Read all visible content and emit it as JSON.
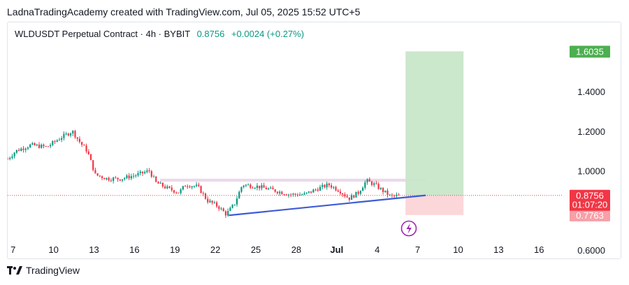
{
  "header": {
    "credit": "LadnaTradingAcademy created with TradingView.com, Jul 05, 2025 15:52 UTC+5"
  },
  "legend": {
    "symbol": "WLDUSDT Perpetual Contract · 4h · BYBIT",
    "price": "0.8756",
    "change": "+0.0024 (+0.27%)"
  },
  "footer": {
    "brand": "TradingView",
    "logo_icon": "tradingview-logo-icon"
  },
  "colors": {
    "up": "#089981",
    "down": "#f23645",
    "trendline": "#3d5bd6",
    "target_zone": "#c8e6c9",
    "stop_zone": "#fcd5d8",
    "resistance_zone": "#e8d5e8",
    "target_label": "#4caf50",
    "price_label": "#f23645"
  },
  "chart_data": {
    "type": "candlestick",
    "y_axis": {
      "min": 0.55,
      "max": 1.75,
      "ticks": [
        "1.4000",
        "1.2000",
        "1.0000",
        "0.6000"
      ]
    },
    "x_axis": {
      "range_days": [
        6.6,
        47.8
      ],
      "ticks": [
        {
          "label": "7",
          "day": 7
        },
        {
          "label": "10",
          "day": 10
        },
        {
          "label": "13",
          "day": 13
        },
        {
          "label": "16",
          "day": 16
        },
        {
          "label": "19",
          "day": 19
        },
        {
          "label": "22",
          "day": 22
        },
        {
          "label": "25",
          "day": 25
        },
        {
          "label": "28",
          "day": 28
        },
        {
          "label": "Jul",
          "day": 31,
          "bold": true
        },
        {
          "label": "4",
          "day": 34
        },
        {
          "label": "7",
          "day": 37
        },
        {
          "label": "10",
          "day": 40
        },
        {
          "label": "13",
          "day": 43
        },
        {
          "label": "16",
          "day": 46
        }
      ]
    },
    "price_path": [
      [
        6.6,
        1.06
      ],
      [
        7.2,
        1.1
      ],
      [
        8.3,
        1.13
      ],
      [
        9.5,
        1.12
      ],
      [
        10.6,
        1.17
      ],
      [
        11.4,
        1.2
      ],
      [
        12.0,
        1.14
      ],
      [
        12.5,
        1.1
      ],
      [
        13.1,
        0.98
      ],
      [
        14.0,
        0.96
      ],
      [
        15.0,
        0.96
      ],
      [
        16.2,
        0.98
      ],
      [
        17.1,
        1.0
      ],
      [
        17.6,
        0.94
      ],
      [
        18.5,
        0.91
      ],
      [
        19.3,
        0.89
      ],
      [
        19.8,
        0.93
      ],
      [
        20.7,
        0.92
      ],
      [
        21.4,
        0.85
      ],
      [
        22.2,
        0.82
      ],
      [
        22.8,
        0.78
      ],
      [
        23.4,
        0.83
      ],
      [
        24.0,
        0.93
      ],
      [
        25.2,
        0.92
      ],
      [
        26.4,
        0.9
      ],
      [
        27.5,
        0.88
      ],
      [
        28.6,
        0.88
      ],
      [
        29.6,
        0.91
      ],
      [
        30.4,
        0.93
      ],
      [
        31.2,
        0.9
      ],
      [
        31.9,
        0.86
      ],
      [
        32.6,
        0.89
      ],
      [
        33.2,
        0.95
      ],
      [
        33.8,
        0.93
      ],
      [
        34.6,
        0.89
      ],
      [
        35.0,
        0.87
      ],
      [
        35.6,
        0.875
      ]
    ],
    "last_price": 0.8756,
    "countdown": "01:07:20",
    "stop_price": 0.7763,
    "target_price": 1.6035,
    "position": {
      "start_day": 36.1,
      "end_day": 40.4,
      "entry": 0.8756,
      "target": 1.6035,
      "stop": 0.7763
    },
    "resistance_zone": {
      "start_day": 17.9,
      "end_day": 37.6,
      "top": 0.96,
      "bottom": 0.945
    },
    "trendline": {
      "start": [
        23.0,
        0.775
      ],
      "end": [
        37.6,
        0.876
      ]
    }
  }
}
